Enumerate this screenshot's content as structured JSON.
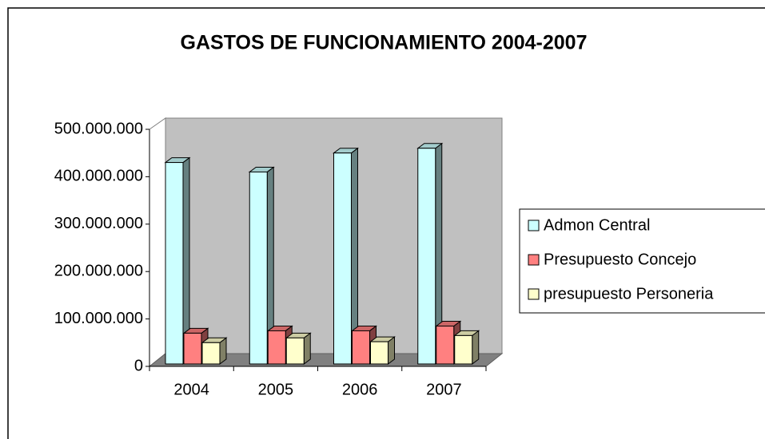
{
  "chart_data": {
    "type": "bar3d",
    "title": "GASTOS DE FUNCIONAMIENTO 2004-2007",
    "categories": [
      "2004",
      "2005",
      "2006",
      "2007"
    ],
    "series": [
      {
        "name": "Admon Central",
        "color": "#ccffff",
        "values": [
          430000000,
          410000000,
          450000000,
          460000000
        ]
      },
      {
        "name": "Presupuesto Concejo",
        "color": "#ff8080",
        "values": [
          70000000,
          75000000,
          75000000,
          85000000
        ]
      },
      {
        "name": "presupuesto Personeria",
        "color": "#ffffcc",
        "values": [
          50000000,
          60000000,
          52000000,
          65000000
        ]
      }
    ],
    "ylim": [
      0,
      500000000
    ],
    "yticks": [
      0,
      {
        "value": 100000000,
        "label": "100.000.000"
      },
      {
        "value": 200000000,
        "label": "200.000.000"
      },
      {
        "value": 300000000,
        "label": "300.000.000"
      },
      {
        "value": 400000000,
        "label": "400.000.000"
      },
      {
        "value": 500000000,
        "label": "500.000.000"
      }
    ],
    "legend": "right"
  }
}
